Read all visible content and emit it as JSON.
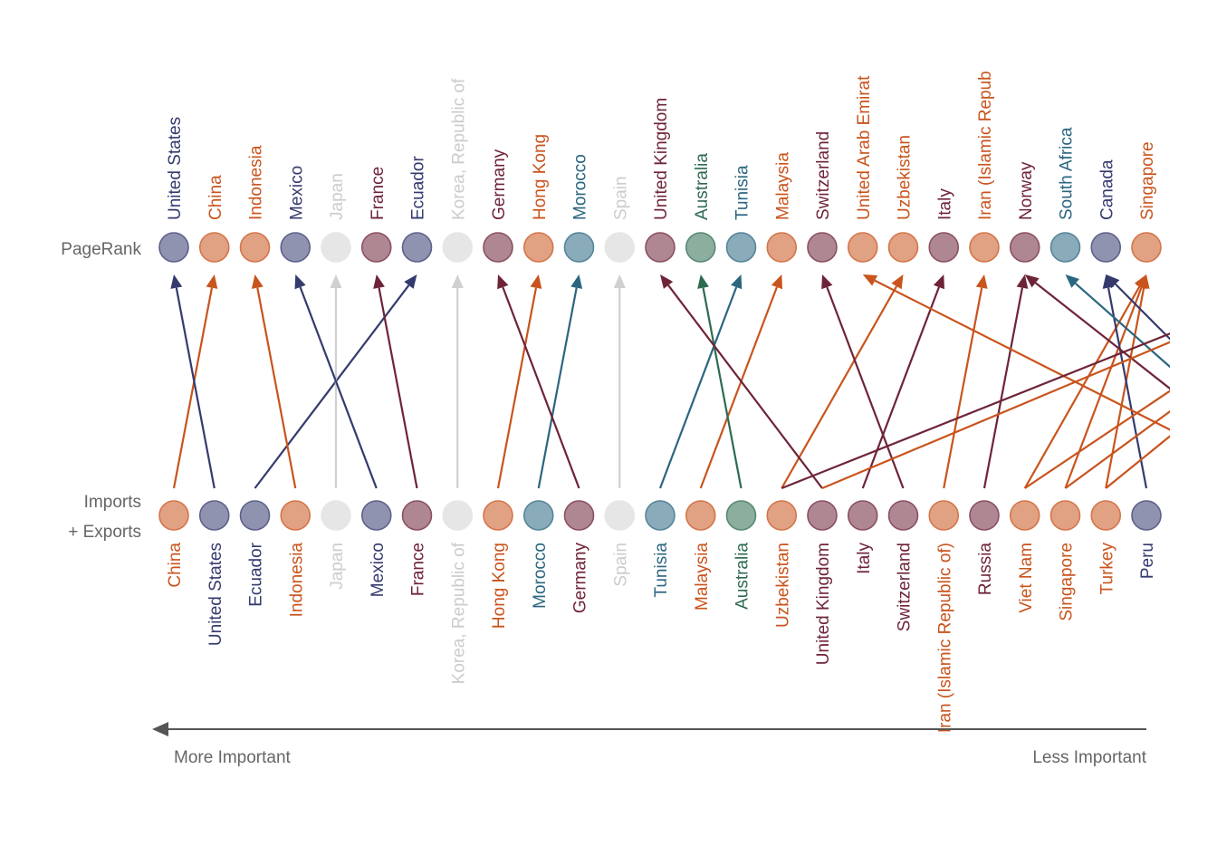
{
  "row_labels": {
    "top": "PageRank",
    "bottom_line1": "Imports",
    "bottom_line2": "+ Exports"
  },
  "axis": {
    "left_caption": "More Important",
    "right_caption": "Less Important"
  },
  "colors": {
    "navy": "#353a6e",
    "orange": "#c9541d",
    "maroon": "#6e2438",
    "teal": "#2b6680",
    "green": "#2d6b50",
    "gray": "#d0d0d0"
  },
  "pagerank": [
    {
      "name": "United States",
      "color": "navy"
    },
    {
      "name": "China",
      "color": "orange"
    },
    {
      "name": "Indonesia",
      "color": "orange"
    },
    {
      "name": "Mexico",
      "color": "navy"
    },
    {
      "name": "Japan",
      "color": "gray"
    },
    {
      "name": "France",
      "color": "maroon"
    },
    {
      "name": "Ecuador",
      "color": "navy"
    },
    {
      "name": "Korea, Republic of",
      "color": "gray"
    },
    {
      "name": "Germany",
      "color": "maroon"
    },
    {
      "name": "Hong Kong",
      "color": "orange"
    },
    {
      "name": "Morocco",
      "color": "teal"
    },
    {
      "name": "Spain",
      "color": "gray"
    },
    {
      "name": "United Kingdom",
      "color": "maroon"
    },
    {
      "name": "Australia",
      "color": "green"
    },
    {
      "name": "Tunisia",
      "color": "teal"
    },
    {
      "name": "Malaysia",
      "color": "orange"
    },
    {
      "name": "Switzerland",
      "color": "maroon"
    },
    {
      "name": "United Arab Emirat",
      "color": "orange"
    },
    {
      "name": "Uzbekistan",
      "color": "orange"
    },
    {
      "name": "Italy",
      "color": "maroon"
    },
    {
      "name": "Iran (Islamic Repub",
      "color": "orange"
    },
    {
      "name": "Norway",
      "color": "maroon"
    },
    {
      "name": "South Africa",
      "color": "teal"
    },
    {
      "name": "Canada",
      "color": "navy"
    },
    {
      "name": "Singapore",
      "color": "orange"
    }
  ],
  "trade": [
    {
      "name": "China",
      "color": "orange"
    },
    {
      "name": "United States",
      "color": "navy"
    },
    {
      "name": "Ecuador",
      "color": "navy"
    },
    {
      "name": "Indonesia",
      "color": "orange"
    },
    {
      "name": "Japan",
      "color": "gray"
    },
    {
      "name": "Mexico",
      "color": "navy"
    },
    {
      "name": "France",
      "color": "maroon"
    },
    {
      "name": "Korea, Republic of",
      "color": "gray"
    },
    {
      "name": "Hong Kong",
      "color": "orange"
    },
    {
      "name": "Morocco",
      "color": "teal"
    },
    {
      "name": "Germany",
      "color": "maroon"
    },
    {
      "name": "Spain",
      "color": "gray"
    },
    {
      "name": "Tunisia",
      "color": "teal"
    },
    {
      "name": "Malaysia",
      "color": "orange"
    },
    {
      "name": "Australia",
      "color": "green"
    },
    {
      "name": "Uzbekistan",
      "color": "orange"
    },
    {
      "name": "United Kingdom",
      "color": "maroon"
    },
    {
      "name": "Italy",
      "color": "maroon"
    },
    {
      "name": "Switzerland",
      "color": "maroon"
    },
    {
      "name": "Iran (Islamic Republic of)",
      "color": "orange"
    },
    {
      "name": "Russia",
      "color": "maroon"
    },
    {
      "name": "Viet Nam",
      "color": "orange"
    },
    {
      "name": "Singapore",
      "color": "orange"
    },
    {
      "name": "Turkey",
      "color": "orange"
    },
    {
      "name": "Peru",
      "color": "navy"
    }
  ],
  "links": [
    {
      "from": 0,
      "to": 1,
      "color": "orange"
    },
    {
      "from": 1,
      "to": 0,
      "color": "navy"
    },
    {
      "from": 2,
      "to": 6,
      "color": "navy"
    },
    {
      "from": 3,
      "to": 2,
      "color": "orange"
    },
    {
      "from": 4,
      "to": 4,
      "color": "gray"
    },
    {
      "from": 5,
      "to": 3,
      "color": "navy"
    },
    {
      "from": 6,
      "to": 5,
      "color": "maroon"
    },
    {
      "from": 7,
      "to": 7,
      "color": "gray"
    },
    {
      "from": 8,
      "to": 9,
      "color": "orange"
    },
    {
      "from": 9,
      "to": 10,
      "color": "teal"
    },
    {
      "from": 10,
      "to": 8,
      "color": "maroon"
    },
    {
      "from": 11,
      "to": 11,
      "color": "gray"
    },
    {
      "from": 12,
      "to": 14,
      "color": "teal"
    },
    {
      "from": 13,
      "to": 15,
      "color": "orange"
    },
    {
      "from": 14,
      "to": 13,
      "color": "green"
    },
    {
      "from": 15,
      "to": 18,
      "color": "orange"
    },
    {
      "from": 16,
      "to": 12,
      "color": "maroon"
    },
    {
      "from": 17,
      "to": 19,
      "color": "maroon"
    },
    {
      "from": 18,
      "to": 16,
      "color": "maroon"
    },
    {
      "from": 19,
      "to": 20,
      "color": "orange"
    },
    {
      "from": 20,
      "to": 21,
      "color": "maroon"
    },
    {
      "from": 21,
      "to": 24,
      "color": "orange"
    },
    {
      "from": 22,
      "to": 24,
      "color": "orange"
    },
    {
      "from": 23,
      "to": 24,
      "color": "orange"
    },
    {
      "from": 24,
      "to": 23,
      "color": "navy"
    }
  ],
  "offscreen_links": [
    {
      "to": 17,
      "color": "orange"
    },
    {
      "to": 21,
      "color": "maroon"
    },
    {
      "to": 22,
      "color": "teal"
    },
    {
      "to": 23,
      "color": "navy"
    },
    {
      "from": 15,
      "color": "maroon"
    },
    {
      "from": 16,
      "color": "orange"
    },
    {
      "from": 21,
      "color": "orange"
    },
    {
      "from": 22,
      "color": "orange"
    },
    {
      "from": 23,
      "color": "orange"
    }
  ]
}
